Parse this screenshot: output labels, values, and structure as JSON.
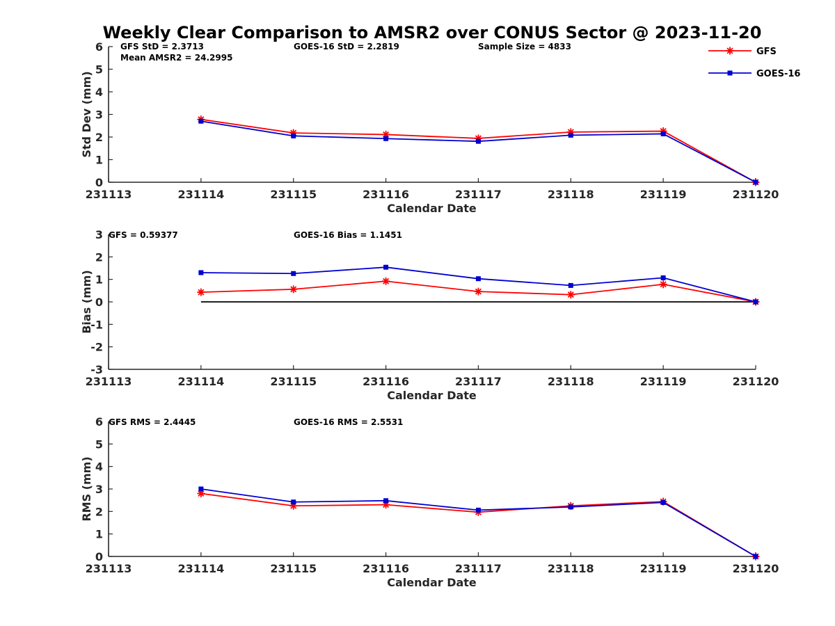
{
  "chart_data": {
    "type": "line",
    "title": "Weekly Clear Comparison to AMSR2 over CONUS Sector @ 2023-11-20",
    "colors": {
      "GFS": "#ff0000",
      "GOES-16": "#0000d0",
      "zero_line": "#000000"
    },
    "legend": {
      "placement": "top-right",
      "entries": [
        {
          "name": "GFS",
          "marker": "asterisk",
          "color": "#ff0000"
        },
        {
          "name": "GOES-16",
          "marker": "square",
          "color": "#0000d0"
        }
      ]
    },
    "panels": [
      {
        "key": "std",
        "ylabel": "Std Dev (mm)",
        "xlabel": "Calendar Date",
        "ylim": [
          0,
          6
        ],
        "yticks": [
          "0",
          "1",
          "2",
          "3",
          "4",
          "5",
          "6"
        ],
        "xticks": [
          "231113",
          "231114",
          "231115",
          "231116",
          "231117",
          "231118",
          "231119",
          "231120"
        ],
        "annotations": [
          "GFS StD = 2.3713",
          "GOES-16 StD = 2.2819",
          "Sample Size = 4833",
          "Mean AMSR2 = 24.2995"
        ],
        "series": [
          {
            "name": "GFS",
            "x": [
              "231114",
              "231115",
              "231116",
              "231117",
              "231118",
              "231119",
              "231120"
            ],
            "values": [
              2.78,
              2.18,
              2.11,
              1.94,
              2.22,
              2.26,
              0.0
            ]
          },
          {
            "name": "GOES-16",
            "x": [
              "231114",
              "231115",
              "231116",
              "231117",
              "231118",
              "231119",
              "231120"
            ],
            "values": [
              2.7,
              2.05,
              1.93,
              1.81,
              2.08,
              2.14,
              0.0
            ]
          }
        ]
      },
      {
        "key": "bias",
        "ylabel": "Bias (mm)",
        "xlabel": "Calendar Date",
        "ylim": [
          -3,
          3
        ],
        "yticks": [
          "-3",
          "-2",
          "-1",
          "0",
          "1",
          "2",
          "3"
        ],
        "xticks": [
          "231113",
          "231114",
          "231115",
          "231116",
          "231117",
          "231118",
          "231119",
          "231120"
        ],
        "annotations": [
          "GFS = 0.59377",
          "GOES-16 Bias  = 1.1451"
        ],
        "zero_line": true,
        "series": [
          {
            "name": "GFS",
            "x": [
              "231114",
              "231115",
              "231116",
              "231117",
              "231118",
              "231119",
              "231120"
            ],
            "values": [
              0.43,
              0.56,
              0.92,
              0.46,
              0.32,
              0.78,
              0.0
            ]
          },
          {
            "name": "GOES-16",
            "x": [
              "231114",
              "231115",
              "231116",
              "231117",
              "231118",
              "231119",
              "231120"
            ],
            "values": [
              1.3,
              1.26,
              1.54,
              1.03,
              0.73,
              1.07,
              0.0
            ]
          }
        ]
      },
      {
        "key": "rms",
        "ylabel": "RMS (mm)",
        "xlabel": "Calendar Date",
        "ylim": [
          0,
          6
        ],
        "yticks": [
          "0",
          "1",
          "2",
          "3",
          "4",
          "5",
          "6"
        ],
        "xticks": [
          "231113",
          "231114",
          "231115",
          "231116",
          "231117",
          "231118",
          "231119",
          "231120"
        ],
        "annotations": [
          "GFS RMS = 2.4445",
          "GOES-16 RMS = 2.5531"
        ],
        "series": [
          {
            "name": "GFS",
            "x": [
              "231114",
              "231115",
              "231116",
              "231117",
              "231118",
              "231119",
              "231120"
            ],
            "values": [
              2.8,
              2.25,
              2.3,
              1.97,
              2.25,
              2.44,
              0.0
            ]
          },
          {
            "name": "GOES-16",
            "x": [
              "231114",
              "231115",
              "231116",
              "231117",
              "231118",
              "231119",
              "231120"
            ],
            "values": [
              3.0,
              2.42,
              2.48,
              2.06,
              2.2,
              2.4,
              0.0
            ]
          }
        ]
      }
    ]
  }
}
